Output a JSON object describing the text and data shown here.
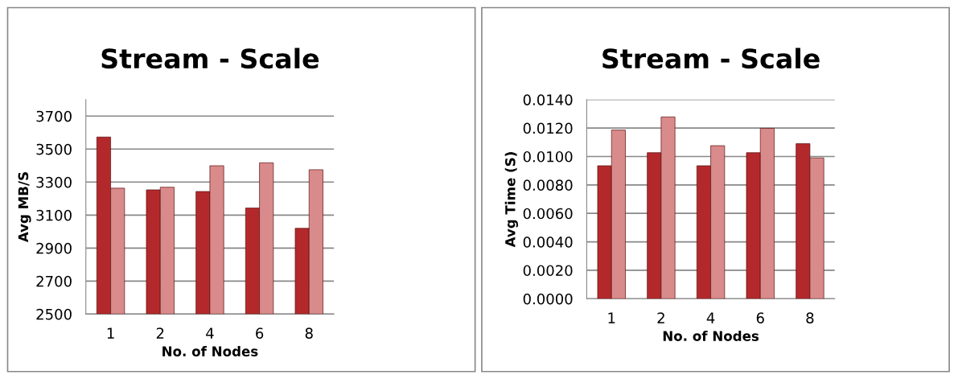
{
  "chart_data": [
    {
      "type": "bar",
      "title": "Stream - Scale",
      "xlabel": "No. of Nodes",
      "ylabel": "Avg MB/S",
      "categories": [
        "1",
        "2",
        "4",
        "6",
        "8"
      ],
      "series": [
        {
          "color": "#b3292b",
          "values": [
            3573,
            3253,
            3243,
            3143,
            3020
          ]
        },
        {
          "color": "#d98a8a",
          "values": [
            3263,
            3269,
            3399,
            3417,
            3375
          ]
        }
      ],
      "ylim": [
        2500,
        3800
      ],
      "yticks": [
        2500,
        2700,
        2900,
        3100,
        3300,
        3500,
        3700
      ],
      "grid": "y"
    },
    {
      "type": "bar",
      "title": "Stream - Scale",
      "xlabel": "No. of Nodes",
      "ylabel": "Avg Time (S)",
      "categories": [
        "1",
        "2",
        "4",
        "6",
        "8"
      ],
      "series": [
        {
          "color": "#b3292b",
          "values": [
            0.00935,
            0.01027,
            0.00935,
            0.01027,
            0.0109
          ]
        },
        {
          "color": "#d98a8a",
          "values": [
            0.01186,
            0.01278,
            0.01076,
            0.01198,
            0.0099
          ]
        }
      ],
      "ylim": [
        0,
        0.014
      ],
      "yticks": [
        {
          "value": 0,
          "label": "0.0000"
        },
        {
          "value": 0.002,
          "label": "0.0020"
        },
        {
          "value": 0.004,
          "label": "0.0040"
        },
        {
          "value": 0.006,
          "label": "0.0060"
        },
        {
          "value": 0.008,
          "label": "0.0080"
        },
        {
          "value": 0.01,
          "label": "0.0100"
        },
        {
          "value": 0.012,
          "label": "0.0120"
        },
        {
          "value": 0.014,
          "label": "0.0140"
        }
      ],
      "grid": "y"
    }
  ]
}
